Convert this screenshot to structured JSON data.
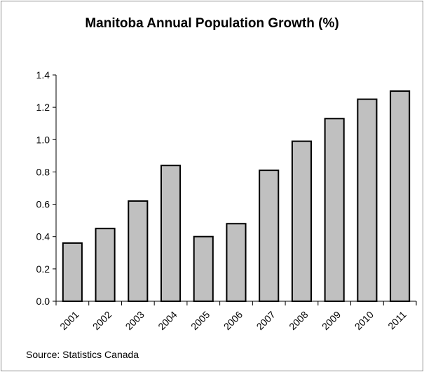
{
  "chart_data": {
    "type": "bar",
    "title": "Manitoba Annual Population Growth (%)",
    "xlabel": "",
    "ylabel": "",
    "categories": [
      "2001",
      "2002",
      "2003",
      "2004",
      "2005",
      "2006",
      "2007",
      "2008",
      "2009",
      "2010",
      "2011"
    ],
    "values": [
      0.36,
      0.45,
      0.62,
      0.84,
      0.4,
      0.48,
      0.81,
      0.99,
      1.13,
      1.25,
      1.3
    ],
    "ylim": [
      0,
      1.4
    ],
    "yticks": [
      "0.0",
      "0.2",
      "0.4",
      "0.6",
      "0.8",
      "1.0",
      "1.2",
      "1.4"
    ],
    "grid": false,
    "legend": "none",
    "bar_color": "#c0c0c0",
    "source": "Source: Statistics Canada"
  }
}
